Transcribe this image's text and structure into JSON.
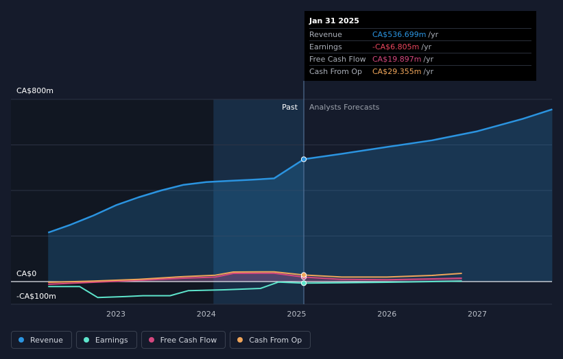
{
  "chart_data": {
    "type": "line",
    "x_ticks": [
      "2023",
      "2024",
      "2025",
      "2026",
      "2027"
    ],
    "y_ticks": [
      "CA$800m",
      "CA$0",
      "-CA$100m"
    ],
    "ylim": [
      -100,
      800
    ],
    "xlim": [
      2022.25,
      2027.83
    ],
    "divider": 2025.08,
    "past_label": "Past",
    "forecast_label": "Analysts Forecasts",
    "series": [
      {
        "name": "Revenue",
        "color": "#2b94e0",
        "area": true,
        "points": [
          [
            2022.25,
            215
          ],
          [
            2022.5,
            250
          ],
          [
            2022.75,
            290
          ],
          [
            2023.0,
            335
          ],
          [
            2023.25,
            370
          ],
          [
            2023.5,
            400
          ],
          [
            2023.75,
            425
          ],
          [
            2024.0,
            437
          ],
          [
            2024.25,
            442
          ],
          [
            2024.5,
            447
          ],
          [
            2024.75,
            453
          ],
          [
            2025.08,
            537
          ],
          [
            2025.5,
            561
          ],
          [
            2026.0,
            591
          ],
          [
            2026.5,
            620
          ],
          [
            2027.0,
            660
          ],
          [
            2027.5,
            714
          ],
          [
            2027.83,
            756
          ]
        ]
      },
      {
        "name": "Earnings",
        "color": "#5ee5cc",
        "area": false,
        "points": [
          [
            2022.25,
            -22
          ],
          [
            2022.6,
            -22
          ],
          [
            2022.8,
            -70
          ],
          [
            2023.1,
            -66
          ],
          [
            2023.3,
            -62
          ],
          [
            2023.6,
            -62
          ],
          [
            2023.8,
            -40
          ],
          [
            2024.2,
            -36
          ],
          [
            2024.6,
            -30
          ],
          [
            2024.8,
            -2
          ],
          [
            2025.08,
            -7
          ],
          [
            2025.5,
            -5
          ],
          [
            2026.0,
            -3
          ],
          [
            2026.5,
            0
          ],
          [
            2026.83,
            2
          ]
        ]
      },
      {
        "name": "Free Cash Flow",
        "color": "#d4477e",
        "area": true,
        "points": [
          [
            2022.25,
            -12
          ],
          [
            2022.75,
            -3
          ],
          [
            2023.25,
            5
          ],
          [
            2023.75,
            15
          ],
          [
            2024.1,
            20
          ],
          [
            2024.3,
            36
          ],
          [
            2024.75,
            37
          ],
          [
            2025.08,
            20
          ],
          [
            2025.5,
            10
          ],
          [
            2026.0,
            8
          ],
          [
            2026.5,
            12
          ],
          [
            2026.83,
            15
          ]
        ]
      },
      {
        "name": "Cash From Op",
        "color": "#efa55a",
        "area": false,
        "points": [
          [
            2022.25,
            -3
          ],
          [
            2022.75,
            2
          ],
          [
            2023.25,
            10
          ],
          [
            2023.75,
            22
          ],
          [
            2024.1,
            28
          ],
          [
            2024.3,
            42
          ],
          [
            2024.75,
            43
          ],
          [
            2025.08,
            29
          ],
          [
            2025.5,
            20
          ],
          [
            2026.0,
            20
          ],
          [
            2026.5,
            27
          ],
          [
            2026.83,
            36
          ]
        ]
      }
    ]
  },
  "tooltip": {
    "date": "Jan 31 2025",
    "rows": [
      {
        "label": "Revenue",
        "value": "CA$536.699m",
        "unit": "/yr",
        "color": "#2b94e0"
      },
      {
        "label": "Earnings",
        "value": "-CA$6.805m",
        "unit": "/yr",
        "color": "#e8455c"
      },
      {
        "label": "Free Cash Flow",
        "value": "CA$19.897m",
        "unit": "/yr",
        "color": "#d4477e"
      },
      {
        "label": "Cash From Op",
        "value": "CA$29.355m",
        "unit": "/yr",
        "color": "#efa55a"
      }
    ]
  },
  "legend": [
    {
      "label": "Revenue",
      "color": "#2b94e0"
    },
    {
      "label": "Earnings",
      "color": "#5ee5cc"
    },
    {
      "label": "Free Cash Flow",
      "color": "#d4477e"
    },
    {
      "label": "Cash From Op",
      "color": "#efa55a"
    }
  ]
}
